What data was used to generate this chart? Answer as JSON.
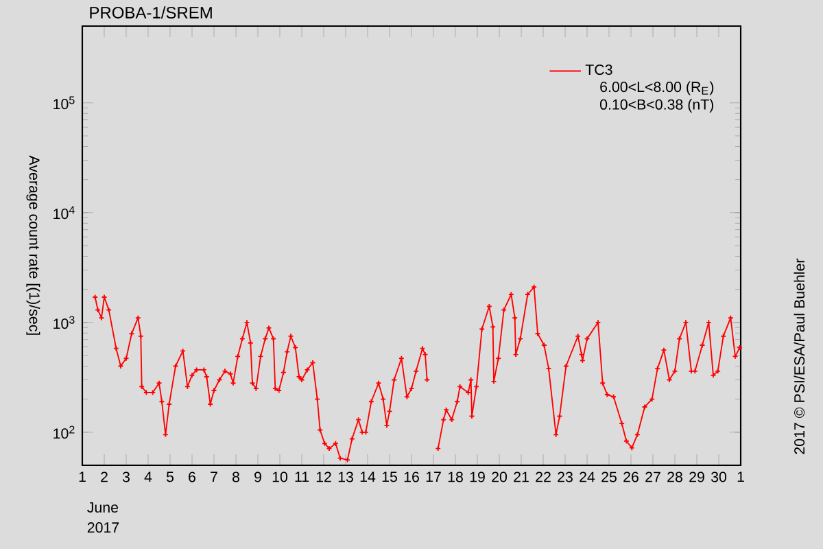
{
  "chart_data": {
    "type": "line",
    "title": "PROBA-1/SREM",
    "ylabel": "Average count rate [(1)/sec]",
    "annotations": [
      "June",
      "2017",
      "6.00<L<8.00 (R$_{E}$)",
      "0.10<B<0.38 (nT)",
      "2017 © PSI/ESA/Paul Buehler"
    ],
    "log": "y",
    "legend": "top right",
    "marker": "cross",
    "line_style": "solid",
    "xlim": [
      "2017-06-01",
      "2017-07-01"
    ],
    "ylim": [
      50,
      500000
    ],
    "xticks": [
      {
        "value": "2017-06-01",
        "label": "1"
      },
      {
        "value": "2017-06-02",
        "label": "2"
      },
      {
        "value": "2017-06-03",
        "label": "3"
      },
      {
        "value": "2017-06-04",
        "label": "4"
      },
      {
        "value": "2017-06-05",
        "label": "5"
      },
      {
        "value": "2017-06-06",
        "label": "6"
      },
      {
        "value": "2017-06-07",
        "label": "7"
      },
      {
        "value": "2017-06-08",
        "label": "8"
      },
      {
        "value": "2017-06-09",
        "label": "9"
      },
      {
        "value": "2017-06-10",
        "label": "10"
      },
      {
        "value": "2017-06-11",
        "label": "11"
      },
      {
        "value": "2017-06-12",
        "label": "12"
      },
      {
        "value": "2017-06-13",
        "label": "13"
      },
      {
        "value": "2017-06-14",
        "label": "14"
      },
      {
        "value": "2017-06-15",
        "label": "15"
      },
      {
        "value": "2017-06-16",
        "label": "16"
      },
      {
        "value": "2017-06-17",
        "label": "17"
      },
      {
        "value": "2017-06-18",
        "label": "18"
      },
      {
        "value": "2017-06-19",
        "label": "19"
      },
      {
        "value": "2017-06-20",
        "label": "20"
      },
      {
        "value": "2017-06-21",
        "label": "21"
      },
      {
        "value": "2017-06-22",
        "label": "22"
      },
      {
        "value": "2017-06-23",
        "label": "23"
      },
      {
        "value": "2017-06-24",
        "label": "24"
      },
      {
        "value": "2017-06-25",
        "label": "25"
      },
      {
        "value": "2017-06-26",
        "label": "26"
      },
      {
        "value": "2017-06-27",
        "label": "27"
      },
      {
        "value": "2017-06-28",
        "label": "28"
      },
      {
        "value": "2017-06-29",
        "label": "29"
      },
      {
        "value": "2017-06-30",
        "label": "30"
      },
      {
        "value": "2017-07-01",
        "label": "1"
      }
    ],
    "yticks": [
      {
        "value": 100,
        "label": "10$^{2}$"
      },
      {
        "value": 1000,
        "label": "10$^{3}$"
      },
      {
        "value": 10000,
        "label": "10$^{4}$"
      },
      {
        "value": 100000,
        "label": "10$^{5}$"
      }
    ],
    "series": [
      {
        "name": "TC3",
        "color": "#ff0000",
        "x": [
          "2017-06-01T14:00",
          "2017-06-01T17:00",
          "2017-06-01T21:00",
          "2017-06-02T00:00",
          "2017-06-02T05:00",
          "2017-06-02T13:00",
          "2017-06-02T18:00",
          "2017-06-03T00:00",
          "2017-06-03T06:00",
          "2017-06-03T13:00",
          "2017-06-03T16:00",
          "2017-06-03T17:00",
          "2017-06-03T22:00",
          "2017-06-04T05:00",
          "2017-06-04T12:00",
          "2017-06-04T15:00",
          "2017-06-04T19:00",
          "2017-06-04T23:00",
          "2017-06-05T06:00",
          "2017-06-05T14:00",
          "2017-06-05T19:00",
          "2017-06-06T00:00",
          "2017-06-06T05:00",
          "2017-06-06T13:00",
          "2017-06-06T16:00",
          "2017-06-06T20:00",
          "2017-06-07T00:00",
          "2017-06-07T06:00",
          "2017-06-07T12:00",
          "2017-06-07T18:00",
          "2017-06-07T21:00",
          "2017-06-08T02:00",
          "2017-06-08T07:00",
          "2017-06-08T12:00",
          "2017-06-08T16:00",
          "2017-06-08T18:00",
          "2017-06-08T22:00",
          "2017-06-09T03:00",
          "2017-06-09T08:00",
          "2017-06-09T12:00",
          "2017-06-09T17:00",
          "2017-06-09T19:00",
          "2017-06-09T23:00",
          "2017-06-10T04:00",
          "2017-06-10T08:00",
          "2017-06-10T12:00",
          "2017-06-10T17:00",
          "2017-06-10T21:00",
          "2017-06-11T00:00",
          "2017-06-11T06:00",
          "2017-06-11T12:00",
          "2017-06-11T17:00",
          "2017-06-11T20:00",
          "2017-06-12T01:00",
          "2017-06-12T06:00",
          "2017-06-12T13:00",
          "2017-06-12T18:00",
          "2017-06-13T02:00",
          "2017-06-13T07:00",
          "2017-06-13T14:00",
          "2017-06-13T18:00",
          "2017-06-13T22:00",
          "2017-06-14T04:00",
          "2017-06-14T12:00",
          "2017-06-14T17:00",
          "2017-06-14T21:00",
          "2017-06-15T00:00",
          "2017-06-15T05:00",
          "2017-06-15T13:00",
          "2017-06-15T19:00",
          "2017-06-16T00:00",
          "2017-06-16T05:00",
          "2017-06-16T12:00",
          "2017-06-16T15:00",
          "2017-06-16T17:00",
          "2017-06-16T18:00",
          "2017-06-16T22:00",
          "2017-06-17T02:00",
          "2017-06-17T05:00",
          "2017-06-17T11:00",
          "2017-06-17T14:00",
          "2017-06-17T20:00",
          "2017-06-18T02:00",
          "2017-06-18T05:00",
          "2017-06-18T14:00",
          "2017-06-18T17:00",
          "2017-06-18T18:00",
          "2017-06-18T23:00",
          "2017-06-19T05:00",
          "2017-06-19T13:00",
          "2017-06-19T17:00",
          "2017-06-19T18:00",
          "2017-06-19T23:00",
          "2017-06-20T05:00",
          "2017-06-20T13:00",
          "2017-06-20T17:00",
          "2017-06-20T18:00",
          "2017-06-20T23:00",
          "2017-06-21T07:00",
          "2017-06-21T14:00",
          "2017-06-21T18:00",
          "2017-06-22T01:00",
          "2017-06-22T06:00",
          "2017-06-22T14:00",
          "2017-06-22T18:00",
          "2017-06-23T01:00",
          "2017-06-23T14:00",
          "2017-06-23T18:00",
          "2017-06-23T19:00",
          "2017-06-24T00:00",
          "2017-06-24T12:00",
          "2017-06-24T17:00",
          "2017-06-24T22:00",
          "2017-06-25T05:00",
          "2017-06-25T14:00",
          "2017-06-25T19:00",
          "2017-06-26T01:00",
          "2017-06-26T07:00",
          "2017-06-26T15:00",
          "2017-06-26T23:00",
          "2017-06-27T05:00",
          "2017-06-27T12:00",
          "2017-06-27T18:00",
          "2017-06-28T00:00",
          "2017-06-28T05:00",
          "2017-06-28T12:00",
          "2017-06-28T18:00",
          "2017-06-28T22:00",
          "2017-06-29T06:00",
          "2017-06-29T13:00",
          "2017-06-29T18:00",
          "2017-06-29T23:00",
          "2017-06-30T05:00",
          "2017-06-30T13:00",
          "2017-06-30T18:00",
          "2017-06-30T23:00"
        ],
        "values": [
          1700,
          1300,
          1100,
          1700,
          1300,
          580,
          400,
          470,
          790,
          1100,
          750,
          260,
          230,
          230,
          280,
          190,
          95,
          180,
          400,
          550,
          260,
          330,
          370,
          370,
          320,
          180,
          240,
          300,
          360,
          340,
          280,
          490,
          710,
          1000,
          650,
          280,
          250,
          490,
          710,
          890,
          710,
          250,
          240,
          350,
          540,
          750,
          590,
          320,
          300,
          370,
          430,
          200,
          105,
          79,
          71,
          79,
          58,
          56,
          87,
          130,
          100,
          100,
          190,
          280,
          200,
          115,
          155,
          300,
          470,
          210,
          250,
          360,
          580,
          510,
          300,
          null,
          null,
          null,
          71,
          130,
          160,
          130,
          190,
          260,
          230,
          300,
          140,
          260,
          870,
          1400,
          910,
          290,
          470,
          1300,
          1800,
          1100,
          510,
          710,
          1800,
          2100,
          790,
          620,
          380,
          95,
          140,
          400,
          750,
          510,
          450,
          710,
          1000,
          280,
          220,
          210,
          120,
          83,
          72,
          95,
          170,
          200,
          380,
          560,
          300,
          360,
          710,
          1000,
          360,
          360,
          620,
          1000,
          330,
          360,
          750,
          1100,
          490,
          590
        ]
      }
    ]
  }
}
